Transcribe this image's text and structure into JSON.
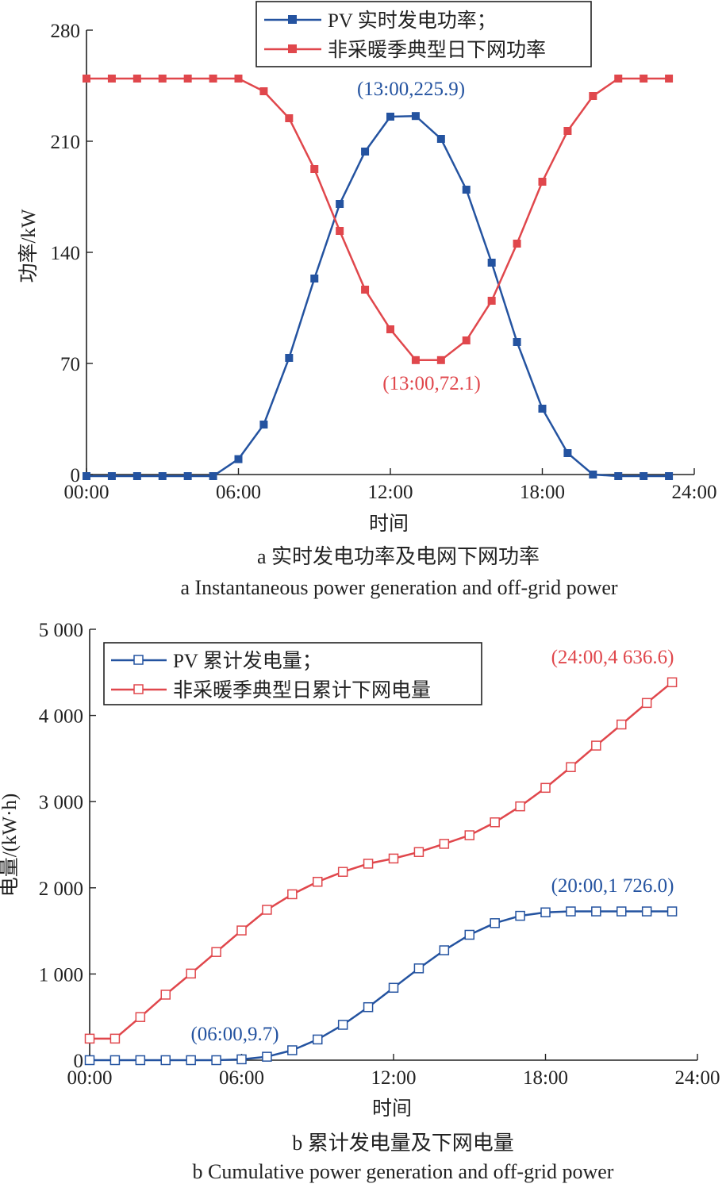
{
  "charts": {
    "a": {
      "caption_cn": "a 实时发电功率及电网下网功率",
      "caption_en": "a Instantaneous power generation and off-grid power",
      "xlabel": "时间",
      "ylabel": "功率/kW",
      "x_ticks": [
        "00:00",
        "06:00",
        "12:00",
        "18:00",
        "24:00"
      ],
      "y_ticks": [
        "0",
        "70",
        "140",
        "210",
        "280"
      ],
      "legend": [
        "PV 实时发电功率；",
        "非采暖季典型日下网功率"
      ],
      "annotations": [
        "(13:00,225.9)",
        "(13:00,72.1)"
      ]
    },
    "b": {
      "caption_cn": "b 累计发电量及下网电量",
      "caption_en": "b Cumulative power generation and off-grid power",
      "xlabel": "时间",
      "ylabel": "电量/(kW·h)",
      "x_ticks": [
        "00:00",
        "06:00",
        "12:00",
        "18:00",
        "24:00"
      ],
      "y_ticks": [
        "0",
        "1 000",
        "2 000",
        "3 000",
        "4 000",
        "5 000"
      ],
      "legend": [
        "PV 累计发电量；",
        "非采暖季典型日累计下网电量"
      ],
      "annotations": [
        "(06:00,9.7)",
        "(20:00,1 726.0)",
        "(24:00,4 636.6)"
      ]
    }
  },
  "colors": {
    "blue": "#2453a0",
    "red": "#e0474c"
  },
  "chart_data": [
    {
      "type": "line",
      "title": "a 实时发电功率及电网下网功率",
      "xlabel": "时间",
      "ylabel": "功率/kW",
      "xlim": [
        0,
        24
      ],
      "ylim": [
        0,
        280
      ],
      "legend_position": "top-center",
      "x": [
        0,
        1,
        2,
        3,
        4,
        5,
        6,
        7,
        8,
        9,
        10,
        11,
        12,
        13,
        14,
        15,
        16,
        17,
        18,
        19,
        20,
        21,
        22,
        23
      ],
      "series": [
        {
          "name": "PV 实时发电功率；",
          "marker": "filled-square",
          "values": [
            -1,
            -1,
            -1,
            -1,
            -1,
            -1,
            9.7,
            31.5,
            73.5,
            123.5,
            170.5,
            203.5,
            225.5,
            225.9,
            211.5,
            179.5,
            133.5,
            83.5,
            41.5,
            13.5,
            0,
            -1,
            -1,
            -1
          ]
        },
        {
          "name": "非采暖季典型日下网功率",
          "marker": "filled-square",
          "values": [
            249.5,
            249.5,
            249.5,
            249.5,
            249.5,
            249.5,
            249.5,
            241.5,
            224.5,
            192.5,
            153.5,
            116.5,
            91.5,
            72.1,
            72.1,
            84.5,
            109.5,
            145.5,
            184.5,
            216.5,
            238.5,
            249.5,
            249.5,
            249.5
          ]
        }
      ]
    },
    {
      "type": "line",
      "title": "b 累计发电量及下网电量",
      "xlabel": "时间",
      "ylabel": "电量/(kW·h)",
      "xlim": [
        0,
        24
      ],
      "ylim": [
        0,
        5000
      ],
      "legend_position": "top-left",
      "x": [
        0,
        1,
        2,
        3,
        4,
        5,
        6,
        7,
        8,
        9,
        10,
        11,
        12,
        13,
        14,
        15,
        16,
        17,
        18,
        19,
        20,
        21,
        22,
        23
      ],
      "series": [
        {
          "name": "PV 累计发电量；",
          "marker": "open-square",
          "values": [
            0,
            0,
            0,
            0,
            0,
            0,
            9.7,
            40,
            115,
            240,
            410,
            615,
            840,
            1065,
            1275,
            1455,
            1590,
            1675,
            1715,
            1726,
            1726,
            1726,
            1726,
            1726
          ]
        },
        {
          "name": "非采暖季典型日累计下网电量",
          "marker": "open-square",
          "values": [
            250,
            250,
            500,
            760,
            1005,
            1255,
            1505,
            1745,
            1925,
            2070,
            2185,
            2280,
            2340,
            2415,
            2510,
            2610,
            2760,
            2945,
            3160,
            3400,
            3650,
            3895,
            4145,
            4385
          ]
        }
      ]
    }
  ]
}
